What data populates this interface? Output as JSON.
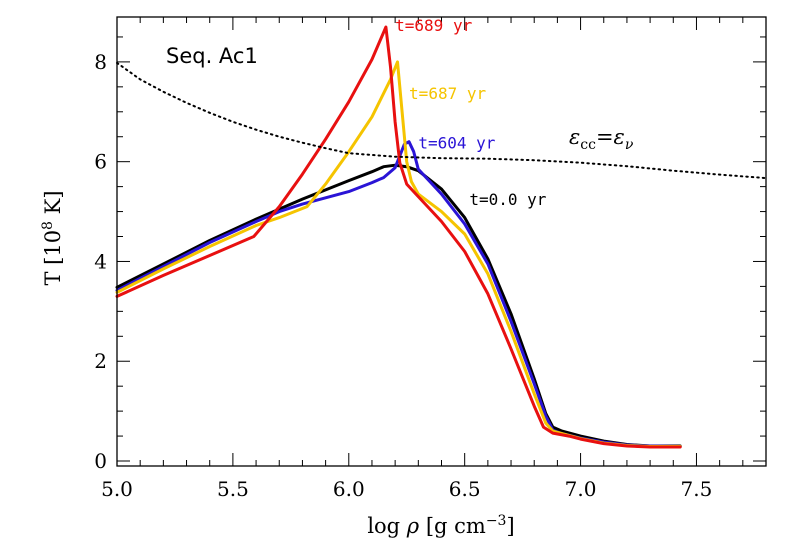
{
  "chart_data": {
    "type": "line",
    "title": "Seq. Ac1",
    "xlabel": {
      "prefix": "log ",
      "symbol": "ρ",
      "suffix": " [g cm",
      "sup": "−3",
      "close": "]"
    },
    "ylabel": {
      "prefix": "T [10",
      "sup": "8",
      "suffix": " K]"
    },
    "xlim": [
      5.0,
      7.8
    ],
    "ylim": [
      -0.1,
      8.9
    ],
    "xticks": [
      5.0,
      5.5,
      6.0,
      6.5,
      7.0,
      7.5
    ],
    "xtick_labels": [
      "5.0",
      "5.5",
      "6.0",
      "6.5",
      "7.0",
      "7.5"
    ],
    "yticks": [
      0,
      2,
      4,
      6,
      8
    ],
    "ytick_labels": [
      "0",
      "2",
      "4",
      "6",
      "8"
    ],
    "x_minor_step": 0.1,
    "y_minor_step": 0.5,
    "series": [
      {
        "name": "t=0.0 yr",
        "color": "#000000",
        "style": "solid",
        "points": [
          [
            5.0,
            3.48
          ],
          [
            5.2,
            3.95
          ],
          [
            5.4,
            4.42
          ],
          [
            5.6,
            4.85
          ],
          [
            5.8,
            5.25
          ],
          [
            6.0,
            5.62
          ],
          [
            6.1,
            5.8
          ],
          [
            6.15,
            5.9
          ],
          [
            6.2,
            5.93
          ],
          [
            6.25,
            5.9
          ],
          [
            6.3,
            5.82
          ],
          [
            6.4,
            5.45
          ],
          [
            6.5,
            4.88
          ],
          [
            6.6,
            4.05
          ],
          [
            6.7,
            2.95
          ],
          [
            6.8,
            1.65
          ],
          [
            6.85,
            0.95
          ],
          [
            6.88,
            0.68
          ],
          [
            6.92,
            0.6
          ],
          [
            7.0,
            0.5
          ],
          [
            7.1,
            0.4
          ],
          [
            7.2,
            0.33
          ],
          [
            7.3,
            0.3
          ],
          [
            7.43,
            0.3
          ]
        ]
      },
      {
        "name": "t=604 yr",
        "color": "#2a14d6",
        "style": "solid",
        "points": [
          [
            5.0,
            3.42
          ],
          [
            5.2,
            3.9
          ],
          [
            5.4,
            4.38
          ],
          [
            5.6,
            4.8
          ],
          [
            5.7,
            5.0
          ],
          [
            5.8,
            5.15
          ],
          [
            6.0,
            5.4
          ],
          [
            6.1,
            5.58
          ],
          [
            6.15,
            5.68
          ],
          [
            6.2,
            5.88
          ],
          [
            6.24,
            6.35
          ],
          [
            6.26,
            6.4
          ],
          [
            6.28,
            6.2
          ],
          [
            6.3,
            5.85
          ],
          [
            6.35,
            5.6
          ],
          [
            6.4,
            5.35
          ],
          [
            6.5,
            4.75
          ],
          [
            6.6,
            3.95
          ],
          [
            6.7,
            2.8
          ],
          [
            6.8,
            1.55
          ],
          [
            6.85,
            0.9
          ],
          [
            6.88,
            0.62
          ],
          [
            6.92,
            0.55
          ],
          [
            7.0,
            0.46
          ],
          [
            7.1,
            0.38
          ],
          [
            7.2,
            0.32
          ],
          [
            7.3,
            0.3
          ],
          [
            7.43,
            0.29
          ]
        ]
      },
      {
        "name": "t=687 yr",
        "color": "#f5c400",
        "style": "solid",
        "points": [
          [
            5.0,
            3.38
          ],
          [
            5.2,
            3.85
          ],
          [
            5.4,
            4.3
          ],
          [
            5.6,
            4.72
          ],
          [
            5.7,
            4.88
          ],
          [
            5.82,
            5.1
          ],
          [
            5.9,
            5.55
          ],
          [
            6.0,
            6.2
          ],
          [
            6.1,
            6.9
          ],
          [
            6.18,
            7.65
          ],
          [
            6.21,
            8.0
          ],
          [
            6.23,
            7.0
          ],
          [
            6.25,
            6.0
          ],
          [
            6.27,
            5.6
          ],
          [
            6.3,
            5.35
          ],
          [
            6.4,
            5.0
          ],
          [
            6.5,
            4.55
          ],
          [
            6.6,
            3.75
          ],
          [
            6.7,
            2.6
          ],
          [
            6.8,
            1.35
          ],
          [
            6.85,
            0.76
          ],
          [
            6.88,
            0.6
          ],
          [
            6.92,
            0.55
          ],
          [
            7.0,
            0.45
          ],
          [
            7.1,
            0.36
          ],
          [
            7.2,
            0.31
          ],
          [
            7.3,
            0.29
          ],
          [
            7.43,
            0.29
          ]
        ]
      },
      {
        "name": "t=689 yr",
        "color": "#e81010",
        "style": "solid",
        "points": [
          [
            5.0,
            3.3
          ],
          [
            5.2,
            3.72
          ],
          [
            5.4,
            4.12
          ],
          [
            5.59,
            4.5
          ],
          [
            5.7,
            5.1
          ],
          [
            5.8,
            5.75
          ],
          [
            5.9,
            6.45
          ],
          [
            6.0,
            7.2
          ],
          [
            6.1,
            8.05
          ],
          [
            6.16,
            8.7
          ],
          [
            6.18,
            7.9
          ],
          [
            6.2,
            6.8
          ],
          [
            6.22,
            5.98
          ],
          [
            6.25,
            5.55
          ],
          [
            6.3,
            5.3
          ],
          [
            6.4,
            4.8
          ],
          [
            6.5,
            4.2
          ],
          [
            6.6,
            3.35
          ],
          [
            6.7,
            2.25
          ],
          [
            6.8,
            1.1
          ],
          [
            6.84,
            0.68
          ],
          [
            6.88,
            0.56
          ],
          [
            6.95,
            0.5
          ],
          [
            7.0,
            0.44
          ],
          [
            7.1,
            0.35
          ],
          [
            7.2,
            0.3
          ],
          [
            7.3,
            0.28
          ],
          [
            7.43,
            0.28
          ]
        ]
      },
      {
        "name": "εcc=εν",
        "color": "#000000",
        "style": "dotted",
        "points": [
          [
            5.0,
            7.98
          ],
          [
            5.1,
            7.65
          ],
          [
            5.2,
            7.4
          ],
          [
            5.3,
            7.18
          ],
          [
            5.4,
            6.98
          ],
          [
            5.5,
            6.8
          ],
          [
            5.6,
            6.64
          ],
          [
            5.7,
            6.5
          ],
          [
            5.8,
            6.38
          ],
          [
            5.9,
            6.27
          ],
          [
            6.0,
            6.17
          ],
          [
            6.2,
            6.1
          ],
          [
            6.4,
            6.07
          ],
          [
            6.6,
            6.06
          ],
          [
            6.8,
            6.03
          ],
          [
            7.0,
            5.98
          ],
          [
            7.2,
            5.91
          ],
          [
            7.4,
            5.82
          ],
          [
            7.6,
            5.74
          ],
          [
            7.8,
            5.67
          ]
        ]
      }
    ],
    "series_labels": [
      {
        "text": "t=689 yr",
        "color": "#e81010",
        "at": [
          6.2,
          8.62
        ]
      },
      {
        "text": "t=687 yr",
        "color": "#f5c400",
        "at": [
          6.26,
          7.26
        ]
      },
      {
        "text": "t=604 yr",
        "color": "#2a14d6",
        "at": [
          6.3,
          6.26
        ]
      },
      {
        "text": "t=0.0 yr",
        "color": "#000000",
        "at": [
          6.52,
          5.13
        ]
      }
    ],
    "annotation": {
      "base1": "ε",
      "sub1": "cc",
      "eq": "=",
      "base2": "ε",
      "sub2": "ν",
      "at": [
        6.95,
        6.35
      ]
    }
  }
}
